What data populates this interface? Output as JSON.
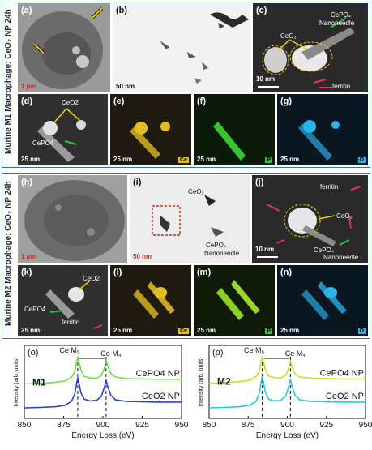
{
  "top_section": {
    "side_label": "Murine M1 Macrophage: CeO₂ NP 24h",
    "panels": {
      "a": {
        "label": "(a)",
        "scale": "1 µm"
      },
      "b": {
        "label": "(b)",
        "scale": "50 nm"
      },
      "c": {
        "label": "(c)",
        "scale": "10 nm",
        "tags": [
          "CePO₄",
          "Nanoneedle",
          "CeO₂",
          "ferritin"
        ]
      },
      "d": {
        "label": "(d)",
        "scale": "25 nm",
        "tags": [
          "CeO2",
          "CePO4"
        ]
      },
      "e": {
        "label": "(e)",
        "scale": "25 nm",
        "element": "Ce"
      },
      "f": {
        "label": "(f)",
        "scale": "25 nm",
        "element": "P"
      },
      "g": {
        "label": "(g)",
        "scale": "25 nm",
        "element": "O"
      }
    }
  },
  "bottom_section": {
    "side_label": "Murine M2 Macrophage: CeO₂ NP 24h",
    "panels": {
      "h": {
        "label": "(h)",
        "scale": "1 µm"
      },
      "i": {
        "label": "(i)",
        "scale": "50 nm",
        "tags": [
          "CeO₂",
          "CePO₄",
          "Nanoneedle"
        ]
      },
      "j": {
        "label": "(j)",
        "scale": "10 nm",
        "tags": [
          "ferritin",
          "CeO₂",
          "CePO₄",
          "Nanoneedle"
        ]
      },
      "k": {
        "label": "(k)",
        "scale": "25 nm",
        "tags": [
          "CeO2",
          "CePO4",
          "ferritin"
        ]
      },
      "l": {
        "label": "(l)",
        "scale": "25 nm",
        "element": "Ce"
      },
      "m": {
        "label": "(m)",
        "scale": "25 nm",
        "element": "P"
      },
      "n": {
        "label": "(n)",
        "scale": "25 nm",
        "element": "O"
      }
    }
  },
  "colors": {
    "frame": "#2f6fb6",
    "ce": "#e0c020",
    "p": "#39c42f",
    "o": "#28b4e8",
    "arrow_green": "#2cc04a",
    "arrow_pink": "#e0305a",
    "arrow_yellow": "#f0d000"
  },
  "chart_data": [
    {
      "type": "line",
      "panel_label": "(o)",
      "sample_label": "M1",
      "title": "",
      "xlabel": "Energy Loss (eV)",
      "ylabel": "Intensity (arb. units)",
      "xlim": [
        850,
        950
      ],
      "xticks": [
        850,
        875,
        900,
        925,
        950
      ],
      "edge_labels": [
        "Ce M₅",
        "Ce M₄"
      ],
      "edge_positions": [
        884,
        902
      ],
      "series": [
        {
          "name": "CePO4 NP",
          "color": "#6fe04a",
          "x": [
            850,
            860,
            870,
            876,
            880,
            882,
            884,
            886,
            888,
            892,
            896,
            899,
            901,
            902,
            903,
            905,
            908,
            915,
            925,
            935,
            950
          ],
          "y": [
            0.78,
            0.79,
            0.82,
            0.86,
            0.95,
            1.1,
            1.5,
            1.15,
            0.98,
            0.93,
            0.93,
            1.0,
            1.2,
            1.42,
            1.25,
            1.05,
            0.96,
            0.92,
            0.91,
            0.9,
            0.9
          ]
        },
        {
          "name": "CeO2 NP",
          "color": "#2a3fd8",
          "x": [
            850,
            860,
            870,
            876,
            880,
            882,
            884,
            886,
            888,
            892,
            896,
            899,
            901,
            902,
            903,
            905,
            908,
            915,
            925,
            935,
            950
          ],
          "y": [
            0.15,
            0.16,
            0.18,
            0.22,
            0.32,
            0.5,
            0.95,
            0.55,
            0.38,
            0.33,
            0.35,
            0.45,
            0.7,
            0.88,
            0.72,
            0.48,
            0.36,
            0.32,
            0.31,
            0.3,
            0.3
          ]
        }
      ]
    },
    {
      "type": "line",
      "panel_label": "(p)",
      "sample_label": "M2",
      "title": "",
      "xlabel": "Energy Loss (eV)",
      "ylabel": "Intensity (arb. units)",
      "xlim": [
        850,
        950
      ],
      "xticks": [
        850,
        875,
        900,
        925,
        950
      ],
      "edge_labels": [
        "Ce M₅",
        "Ce M₄"
      ],
      "edge_positions": [
        884,
        902
      ],
      "series": [
        {
          "name": "CePO4 NP",
          "color": "#c8e020",
          "x": [
            850,
            860,
            870,
            876,
            880,
            882,
            884,
            886,
            888,
            892,
            896,
            899,
            901,
            902,
            903,
            905,
            908,
            915,
            925,
            935,
            950
          ],
          "y": [
            0.8,
            0.81,
            0.84,
            0.88,
            0.97,
            1.12,
            1.5,
            1.15,
            0.99,
            0.94,
            0.94,
            1.0,
            1.2,
            1.4,
            1.22,
            1.04,
            0.96,
            0.93,
            0.92,
            0.91,
            0.91
          ]
        },
        {
          "name": "CeO2 NP",
          "color": "#28c8e0",
          "x": [
            850,
            860,
            870,
            876,
            880,
            882,
            884,
            886,
            888,
            892,
            896,
            899,
            901,
            902,
            903,
            905,
            908,
            915,
            925,
            935,
            950
          ],
          "y": [
            0.15,
            0.16,
            0.18,
            0.22,
            0.32,
            0.52,
            0.98,
            0.56,
            0.38,
            0.33,
            0.35,
            0.46,
            0.72,
            0.9,
            0.72,
            0.48,
            0.36,
            0.32,
            0.31,
            0.3,
            0.3
          ]
        }
      ]
    }
  ]
}
